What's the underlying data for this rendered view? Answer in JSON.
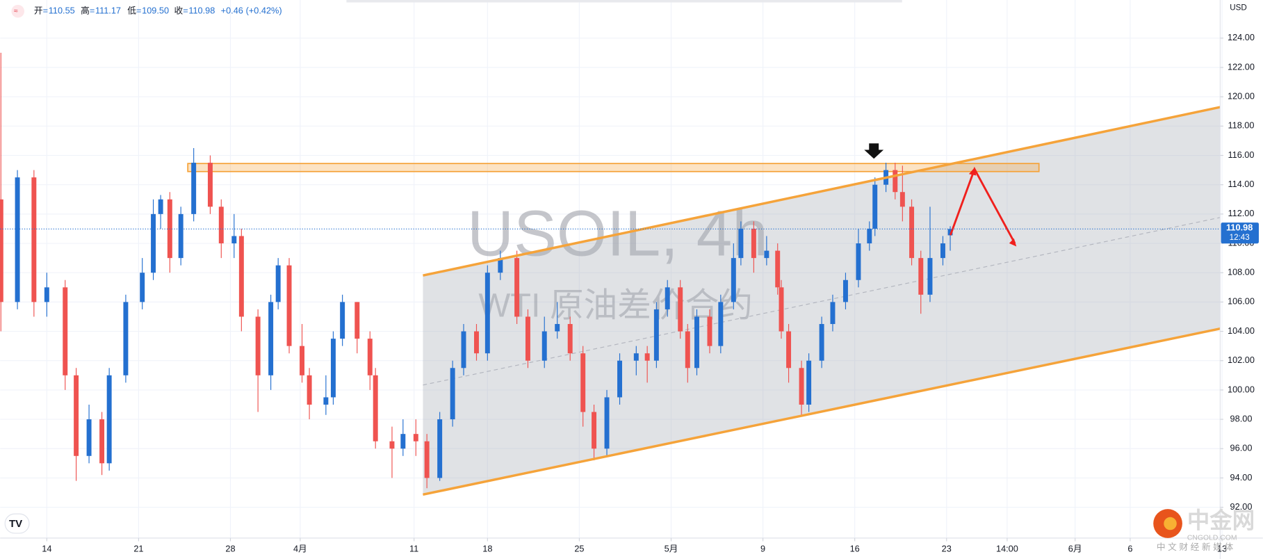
{
  "chart_data": {
    "type": "candlestick",
    "watermark_title": "USOIL, 4h",
    "watermark_subtitle": "WTI 原油差价合约",
    "currency": "USD",
    "ohlc_legend": [
      {
        "label": "开",
        "value": "110.55"
      },
      {
        "label": "高",
        "value": "111.17"
      },
      {
        "label": "低",
        "value": "109.50"
      },
      {
        "label": "收",
        "value": "110.98"
      }
    ],
    "change": "+0.46",
    "change_percent": "(+0.42%)",
    "last_price": 110.98,
    "countdown": "12:43",
    "up_color": "#2470d0",
    "down_color": "#ef5350",
    "grid": true,
    "x": [
      -2.5,
      -1.6,
      -0.7,
      0,
      1,
      1.6,
      2.3,
      3,
      3.4,
      4.3,
      5.2,
      5.8,
      6.2,
      6.7,
      7.3,
      8,
      8.9,
      9.5,
      10.2,
      10.6,
      11.5,
      12.2,
      12.6,
      13.2,
      13.9,
      14.3,
      15.2,
      15.6,
      16.1,
      16.9,
      17.6,
      17.9,
      18.8,
      19.4,
      20.1,
      20.7,
      21.4,
      22.1,
      22.7,
      23.4,
      24,
      24.7,
      25.6,
      26.2,
      27.1,
      27.8,
      28.5,
      29.2,
      29.8,
      30.5,
      31.2,
      32.1,
      32.7,
      33.2,
      33.8,
      34.5,
      34.9,
      35.4,
      36.1,
      36.7,
      37.4,
      37.8,
      38.5,
      39.2,
      39.8,
      40,
      40.4,
      41.1,
      41.5,
      42.2,
      42.8,
      43.5,
      44.2,
      44.8,
      45.1,
      45.7,
      46.2,
      46.6,
      47.1,
      47.6,
      48.1,
      48.8,
      49.2
    ],
    "open": [
      113,
      106,
      114.5,
      106,
      107,
      101,
      95.5,
      98,
      95,
      101,
      106,
      108,
      112,
      113,
      109,
      112,
      115.5,
      112.5,
      110,
      110.5,
      105,
      101,
      106,
      108.5,
      103,
      101,
      99,
      99.5,
      103.5,
      106,
      103.5,
      101,
      96.5,
      96,
      97,
      96.5,
      94,
      98,
      101.5,
      104,
      102.5,
      108,
      109,
      105,
      102,
      104,
      104.5,
      102.5,
      98.5,
      96,
      99.5,
      102,
      102.5,
      102,
      105.5,
      107,
      104,
      101.5,
      105,
      103,
      106,
      109,
      111,
      109,
      109.5,
      107,
      104,
      101.5,
      99,
      102,
      104.5,
      106,
      107.5,
      110,
      111,
      114,
      115,
      113.5,
      112.5,
      109,
      106.5,
      109,
      110.55
    ],
    "high": [
      123,
      115,
      115,
      108,
      107.5,
      101.5,
      99,
      98.5,
      101.5,
      106.5,
      109,
      113,
      113.3,
      113.5,
      112.5,
      116.5,
      116,
      113,
      112,
      111,
      105.5,
      106.5,
      109,
      109,
      104.5,
      101.5,
      101,
      104,
      106.5,
      106,
      104,
      101.5,
      97.5,
      98,
      98,
      97,
      98.5,
      102,
      104.5,
      104.5,
      108.5,
      109.5,
      109.5,
      105.5,
      105,
      106,
      105,
      103,
      99,
      100,
      102.5,
      103,
      103,
      106,
      107.5,
      107.5,
      104.5,
      105.5,
      105.5,
      106.5,
      110,
      111.5,
      111.5,
      110.5,
      110,
      107.5,
      104.5,
      102,
      102.5,
      105,
      106.5,
      108,
      111,
      111.5,
      114.5,
      115.5,
      115.5,
      115.3,
      113,
      109.5,
      112.5,
      110.5,
      111.17
    ],
    "low": [
      104,
      105.5,
      105,
      105,
      100,
      93.8,
      95,
      94.2,
      94.5,
      100.5,
      105.5,
      107.5,
      111,
      108,
      108.5,
      111.5,
      112,
      109,
      109,
      104,
      98.5,
      100,
      105.5,
      102.5,
      100.5,
      98,
      98.3,
      99,
      103,
      102.5,
      100,
      96,
      94,
      95.5,
      95.5,
      93.3,
      93.8,
      97.5,
      101,
      102,
      102,
      107.5,
      104.5,
      101.5,
      101.5,
      103.5,
      102,
      97.5,
      95.2,
      95.5,
      99,
      101,
      100.5,
      101.5,
      105,
      103.5,
      100.5,
      101,
      102.5,
      102.5,
      105.5,
      108.5,
      108,
      108.5,
      106.5,
      103.5,
      100.5,
      98.2,
      98.5,
      101.5,
      104,
      105.5,
      107,
      109.5,
      110.5,
      113.5,
      113,
      111.5,
      108.5,
      105.2,
      106,
      108.5,
      109.5
    ],
    "close": [
      106,
      114.5,
      106,
      107,
      101,
      95.5,
      98,
      95,
      101,
      106,
      108,
      112,
      113,
      109,
      112,
      115.5,
      112.5,
      110,
      110.5,
      105,
      101,
      106,
      108.5,
      103,
      101,
      99,
      99.5,
      103.5,
      106,
      103.5,
      101,
      96.5,
      96,
      97,
      96.5,
      94,
      98,
      101.5,
      104,
      102.5,
      108,
      109,
      105,
      102,
      104,
      104.5,
      102.5,
      98.5,
      96,
      99.5,
      102,
      102.5,
      102,
      105.5,
      107,
      104,
      101.5,
      105,
      103,
      106,
      109,
      111,
      109,
      109.5,
      107,
      104,
      101.5,
      99,
      102,
      104.5,
      106,
      107.5,
      110,
      111,
      114,
      115,
      113.5,
      112.5,
      109,
      106.5,
      109,
      110,
      110.98
    ],
    "xlim": [
      -2.54,
      63.9
    ],
    "xticks": [
      {
        "value": 0,
        "label": "14"
      },
      {
        "value": 5,
        "label": "21"
      },
      {
        "value": 10,
        "label": "28"
      },
      {
        "value": 13.8,
        "label": "4月"
      },
      {
        "value": 20,
        "label": "11"
      },
      {
        "value": 24,
        "label": "18"
      },
      {
        "value": 29,
        "label": "25"
      },
      {
        "value": 34,
        "label": "5月"
      },
      {
        "value": 39,
        "label": "9"
      },
      {
        "value": 44,
        "label": "16"
      },
      {
        "value": 49,
        "label": "23"
      },
      {
        "value": 52.3,
        "label": "14:00"
      },
      {
        "value": 56,
        "label": "6月"
      },
      {
        "value": 59,
        "label": "6"
      },
      {
        "value": 64,
        "label": "13"
      }
    ],
    "ylim": [
      89.9,
      126.6
    ],
    "yticks": [
      {
        "value": 92,
        "label": "92.00"
      },
      {
        "value": 94,
        "label": "94.00"
      },
      {
        "value": 96,
        "label": "96.00"
      },
      {
        "value": 98,
        "label": "98.00"
      },
      {
        "value": 100,
        "label": "100.00"
      },
      {
        "value": 102,
        "label": "102.00"
      },
      {
        "value": 104,
        "label": "104.00"
      },
      {
        "value": 106,
        "label": "106.00"
      },
      {
        "value": 108,
        "label": "108.00"
      },
      {
        "value": 110,
        "label": "110.00"
      },
      {
        "value": 112,
        "label": "112.00"
      },
      {
        "value": 114,
        "label": "114.00"
      },
      {
        "value": 116,
        "label": "116.00"
      },
      {
        "value": 118,
        "label": "118.00"
      },
      {
        "value": 120,
        "label": "120.00"
      },
      {
        "value": 122,
        "label": "122.00"
      },
      {
        "value": 124,
        "label": "124.00"
      }
    ],
    "brand": "中金网",
    "brand_site": "CNGOLD.COM",
    "brand_slogan": "中 文 财 经 新 媒 体"
  }
}
